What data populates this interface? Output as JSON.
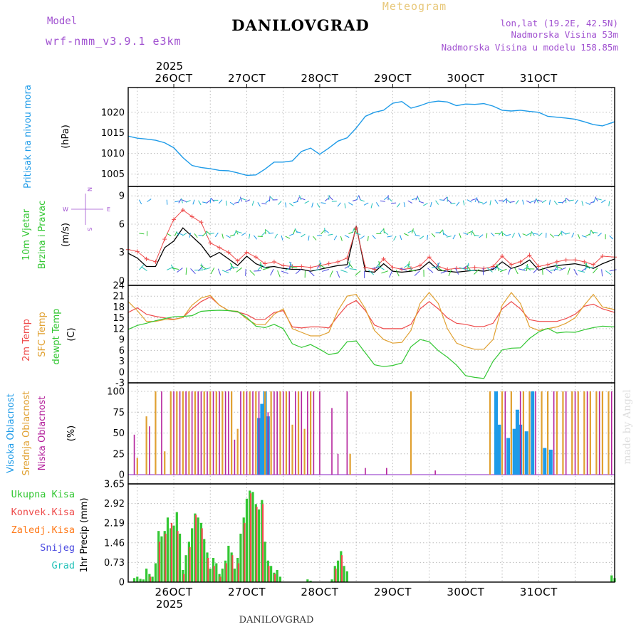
{
  "header": {
    "subtitle": "Meteogram",
    "title": "DANILOVGRAD",
    "model_label": "Model",
    "model_name": "wrf-nmm_v3.9.1 e3km",
    "lonlat": "lon,lat (19.2E, 42.5N)",
    "elevation": "Nadmorska Visina 53m",
    "model_elevation": "Nadmorska Visina u modelu 158.85m",
    "year": "2025",
    "footer_title": "DANILOVGRAD",
    "watermark": "made by Angel"
  },
  "colors": {
    "pressure": "#1e9be8",
    "temp2m": "#ee4b4b",
    "sfc": "#e0a030",
    "dew": "#33c733",
    "high_cloud": "#1e9be8",
    "mid_cloud": "#e0a030",
    "low_cloud": "#b4229c",
    "total_precip": "#33c733",
    "conv_precip": "#ee4b4b",
    "frozen": "#ff7a1a",
    "snow": "#4a4ae0",
    "hail": "#22c2b8",
    "purple": "#a050d0"
  },
  "time_axis": {
    "days": [
      "26OCT",
      "27OCT",
      "28OCT",
      "29OCT",
      "30OCT",
      "31OCT"
    ],
    "range_hours": [
      -15,
      145
    ]
  },
  "chart_data": [
    {
      "type": "line",
      "title": "Pritisak na nivou mora",
      "ylabel": "(hPa)",
      "ylim": [
        1002,
        1026
      ],
      "yticks": [
        "1005",
        "1010",
        "1015",
        "1020"
      ],
      "x": [
        -15,
        -12,
        -9,
        -6,
        -3,
        0,
        3,
        6,
        9,
        12,
        15,
        18,
        21,
        24,
        27,
        30,
        33,
        36,
        39,
        42,
        45,
        48,
        51,
        54,
        57,
        60,
        63,
        66,
        69,
        72,
        75,
        78,
        81,
        84,
        87,
        90,
        93,
        96,
        99,
        102,
        105,
        108,
        111,
        114,
        117,
        120,
        123,
        126,
        129,
        132,
        135,
        138,
        141,
        145
      ],
      "values": [
        1014.2,
        1013.7,
        1013.5,
        1013.2,
        1012.6,
        1011.4,
        1009.0,
        1007.1,
        1006.6,
        1006.3,
        1005.9,
        1005.8,
        1005.3,
        1004.7,
        1004.8,
        1006.2,
        1007.9,
        1007.9,
        1008.2,
        1010.5,
        1011.3,
        1009.8,
        1011.3,
        1013.0,
        1013.8,
        1016.2,
        1019.0,
        1020.0,
        1020.5,
        1022.2,
        1022.6,
        1021.0,
        1021.6,
        1022.4,
        1022.7,
        1022.5,
        1021.6,
        1022.0,
        1021.9,
        1022.1,
        1021.5,
        1020.5,
        1020.3,
        1020.5,
        1020.2,
        1020.0,
        1019.0,
        1018.8,
        1018.6,
        1018.3,
        1017.7,
        1017.0,
        1016.7,
        1017.7
      ]
    },
    {
      "type": "line",
      "title": "10m Vjetar Brzina i Pravac",
      "ylabel": "(m/s)",
      "ylim": [
        -0.5,
        10
      ],
      "yticks": [
        "0",
        "3",
        "6",
        "9"
      ],
      "compass": {
        "n": "N",
        "s": "S",
        "w": "W",
        "e": "E"
      },
      "x": [
        -15,
        -12,
        -9,
        -6,
        -3,
        0,
        3,
        6,
        9,
        12,
        15,
        18,
        21,
        24,
        27,
        30,
        33,
        36,
        39,
        42,
        45,
        48,
        51,
        54,
        57,
        60,
        63,
        66,
        69,
        72,
        75,
        78,
        81,
        84,
        87,
        90,
        93,
        96,
        99,
        102,
        105,
        108,
        111,
        114,
        117,
        120,
        123,
        126,
        129,
        132,
        135,
        138,
        141,
        145
      ],
      "values": [
        2.9,
        2.4,
        1.5,
        1.5,
        3.5,
        4.2,
        5.6,
        4.7,
        3.8,
        2.5,
        3.0,
        2.3,
        1.6,
        2.6,
        1.8,
        1.4,
        1.5,
        1.3,
        1.2,
        1.2,
        1.0,
        1.2,
        1.4,
        1.6,
        1.7,
        5.8,
        1.0,
        0.9,
        1.8,
        1.0,
        0.9,
        1.0,
        1.2,
        2.0,
        1.1,
        1.0,
        0.9,
        1.0,
        1.1,
        1.0,
        1.2,
        2.0,
        1.3,
        1.6,
        2.2,
        1.1,
        1.4,
        1.6,
        1.7,
        1.8,
        1.6,
        1.3,
        1.8,
        2.3
      ],
      "gust": [
        3.3,
        3.1,
        2.3,
        2.0,
        4.4,
        6.5,
        7.5,
        6.8,
        6.2,
        4.0,
        3.5,
        3.0,
        2.1,
        3.0,
        2.5,
        1.8,
        2.0,
        1.6,
        1.5,
        1.5,
        1.4,
        1.6,
        1.8,
        2.0,
        2.4,
        5.6,
        1.4,
        1.2,
        2.3,
        1.4,
        1.2,
        1.3,
        1.6,
        2.5,
        1.5,
        1.2,
        1.3,
        1.3,
        1.4,
        1.3,
        1.5,
        2.6,
        1.7,
        2.0,
        2.7,
        1.5,
        1.7,
        2.0,
        2.2,
        2.2,
        2.0,
        1.7,
        2.6,
        2.5
      ]
    },
    {
      "type": "line",
      "title": "2m Temp / SFC Temp / dewpt Temp",
      "ylabel": "(C)",
      "ylim": [
        -3,
        24
      ],
      "yticks": [
        "-3",
        "0",
        "3",
        "6",
        "9",
        "12",
        "15",
        "18",
        "21",
        "24"
      ],
      "legend": [
        "2m Temp",
        "SFC Temp",
        "dewpt Temp"
      ],
      "x": [
        -15,
        -12,
        -9,
        -6,
        -3,
        0,
        3,
        6,
        9,
        12,
        15,
        18,
        21,
        24,
        27,
        30,
        33,
        36,
        39,
        42,
        45,
        48,
        51,
        54,
        57,
        60,
        63,
        66,
        69,
        72,
        75,
        78,
        81,
        84,
        87,
        90,
        93,
        96,
        99,
        102,
        105,
        108,
        111,
        114,
        117,
        120,
        123,
        126,
        129,
        132,
        135,
        138,
        141,
        145
      ],
      "series": [
        {
          "name": "2m Temp",
          "values": [
            16.5,
            17.8,
            16.0,
            15.4,
            15.0,
            14.6,
            15.1,
            17.5,
            19.5,
            20.8,
            18.5,
            17.0,
            16.6,
            15.9,
            14.5,
            14.6,
            16.5,
            17.0,
            12.5,
            12.2,
            12.5,
            12.5,
            12.2,
            15.5,
            18.5,
            19.8,
            17.0,
            13.0,
            12.0,
            12.0,
            12.0,
            13.2,
            17.5,
            19.5,
            17.5,
            15.0,
            13.5,
            13.2,
            12.6,
            12.6,
            13.5,
            17.5,
            19.5,
            17.5,
            14.5,
            14.0,
            14.0,
            14.0,
            14.8,
            16.0,
            18.2,
            18.8,
            17.5,
            16.5
          ]
        },
        {
          "name": "SFC Temp",
          "values": [
            19.5,
            17.0,
            14.0,
            14.0,
            14.5,
            14.5,
            15.1,
            18.5,
            20.5,
            21.2,
            18.5,
            17.0,
            16.8,
            14.7,
            13.2,
            13.1,
            16.0,
            17.5,
            12.0,
            11.0,
            10.0,
            10.0,
            11.0,
            17.0,
            21.0,
            21.5,
            17.5,
            11.5,
            9.0,
            8.0,
            8.2,
            11.5,
            19.0,
            22.0,
            19.0,
            12.0,
            8.0,
            7.0,
            6.3,
            6.3,
            9.0,
            18.5,
            22.0,
            19.0,
            12.5,
            11.5,
            12.0,
            12.5,
            13.5,
            15.0,
            18.5,
            21.5,
            18.0,
            17.3
          ]
        },
        {
          "name": "dewpt Temp",
          "values": [
            11.8,
            12.9,
            13.5,
            14.2,
            14.8,
            15.3,
            15.4,
            15.6,
            16.8,
            17.0,
            17.1,
            17.0,
            16.7,
            15.1,
            12.7,
            12.3,
            13.2,
            12.0,
            7.8,
            6.8,
            7.6,
            6.3,
            4.8,
            5.3,
            8.4,
            8.6,
            5.3,
            2.0,
            1.5,
            1.8,
            2.5,
            7.0,
            9.0,
            8.4,
            5.9,
            4.1,
            1.9,
            -1.0,
            -1.5,
            -1.8,
            3.0,
            6.1,
            6.6,
            6.7,
            9.3,
            11.1,
            12.1,
            10.8,
            11.1,
            11.0,
            11.7,
            12.3,
            12.7,
            12.5
          ]
        }
      ]
    },
    {
      "type": "bar",
      "title": "Visoka / Srednja / Niska Oblacnost",
      "ylabel": "(%)",
      "ylim": [
        0,
        100
      ],
      "yticks": [
        "0",
        "25",
        "50",
        "75",
        "100"
      ],
      "legend": [
        "Visoka Oblacnost",
        "Srednja Oblacnost",
        "Niska Oblacnost"
      ],
      "series": [
        {
          "name": "Visoka Oblacnost",
          "x": [
            28,
            29,
            30,
            31,
            106,
            107,
            110,
            112,
            113,
            114,
            116,
            118,
            122,
            124
          ],
          "values": [
            68,
            85,
            100,
            70,
            100,
            60,
            44,
            55,
            78,
            60,
            52,
            100,
            32,
            30
          ]
        },
        {
          "name": "Srednja Oblacnost",
          "x": [
            -12,
            -9,
            -6,
            -3,
            -1,
            1,
            3,
            5,
            7,
            10,
            12,
            14,
            16,
            19,
            21,
            23,
            25,
            27,
            30,
            32,
            35,
            37,
            39,
            41,
            43,
            45,
            58,
            78,
            104,
            108,
            111,
            115,
            117,
            121,
            123,
            126,
            128,
            131,
            133,
            135,
            137,
            139,
            141,
            143
          ],
          "values": [
            20,
            70,
            100,
            28,
            100,
            100,
            100,
            100,
            100,
            100,
            100,
            100,
            100,
            100,
            55,
            100,
            100,
            100,
            100,
            100,
            100,
            100,
            60,
            100,
            55,
            100,
            25,
            100,
            100,
            100,
            100,
            100,
            100,
            100,
            100,
            100,
            100,
            100,
            100,
            100,
            100,
            100,
            100,
            100
          ]
        },
        {
          "name": "Niska Oblacnost",
          "x": [
            -13,
            -8,
            -4,
            0,
            2,
            4,
            6,
            8,
            9,
            11,
            13,
            15,
            17,
            18,
            20,
            22,
            24,
            26,
            28,
            31,
            33,
            34,
            36,
            38,
            40,
            42,
            44,
            46,
            48,
            52,
            54,
            57,
            63,
            70,
            86,
            109,
            114,
            119,
            125,
            129,
            132,
            136,
            140,
            144
          ],
          "values": [
            48,
            58,
            100,
            100,
            100,
            100,
            100,
            100,
            100,
            100,
            100,
            100,
            100,
            100,
            42,
            100,
            100,
            100,
            100,
            75,
            100,
            100,
            100,
            100,
            100,
            100,
            100,
            100,
            100,
            80,
            25,
            100,
            8,
            8,
            5,
            100,
            100,
            100,
            100,
            100,
            100,
            100,
            100,
            100
          ]
        }
      ]
    },
    {
      "type": "bar",
      "title": "1hr Precip",
      "ylabel": "1hr Precip (mm)",
      "ylim": [
        0,
        3.65
      ],
      "yticks": [
        "0",
        "0.73",
        "1.46",
        "2.19",
        "2.92",
        "3.65"
      ],
      "legend": [
        "Ukupna Kisa",
        "Konvek.Kisa",
        "Zaledj.Kisa",
        "Snijeg",
        "Grad"
      ],
      "series": [
        {
          "name": "Ukupna Kisa",
          "x": [
            -13,
            -12,
            -11,
            -10,
            -9,
            -8,
            -7,
            -6,
            -5,
            -4,
            -3,
            -2,
            -1,
            0,
            1,
            2,
            3,
            4,
            5,
            6,
            7,
            8,
            9,
            10,
            11,
            12,
            13,
            14,
            15,
            16,
            17,
            18,
            19,
            20,
            21,
            22,
            23,
            24,
            25,
            26,
            27,
            28,
            29,
            30,
            31,
            32,
            33,
            34,
            35,
            44,
            45,
            52,
            53,
            54,
            55,
            56,
            57,
            144,
            145
          ],
          "values": [
            0.15,
            0.2,
            0.12,
            0.1,
            0.5,
            0.3,
            0.2,
            0.7,
            1.9,
            1.7,
            1.9,
            2.4,
            2.0,
            2.1,
            2.6,
            1.8,
            0.45,
            1.0,
            1.5,
            2.0,
            2.55,
            2.4,
            2.2,
            1.6,
            1.1,
            0.5,
            0.9,
            0.7,
            0.3,
            0.5,
            0.8,
            1.35,
            1.1,
            0.5,
            0.9,
            1.8,
            2.4,
            3.1,
            3.4,
            3.35,
            2.9,
            2.7,
            3.05,
            1.5,
            0.8,
            0.6,
            0.35,
            0.45,
            0.2,
            0.1,
            0.05,
            0.1,
            0.6,
            0.8,
            1.15,
            0.6,
            0.4,
            0.25,
            0.15
          ]
        },
        {
          "name": "Konvek.Kisa",
          "x": [
            -8,
            -5,
            -3,
            -1,
            1,
            3,
            5,
            7,
            9,
            11,
            13,
            15,
            17,
            19,
            21,
            23,
            25,
            27,
            29,
            31,
            33,
            53,
            55
          ],
          "values": [
            0.2,
            1.5,
            1.8,
            2.2,
            1.9,
            0.3,
            1.3,
            2.5,
            2.0,
            0.9,
            0.6,
            0.2,
            0.7,
            1.0,
            0.7,
            2.2,
            3.3,
            2.8,
            2.9,
            0.6,
            0.3,
            0.5,
            1.0
          ]
        }
      ]
    }
  ]
}
